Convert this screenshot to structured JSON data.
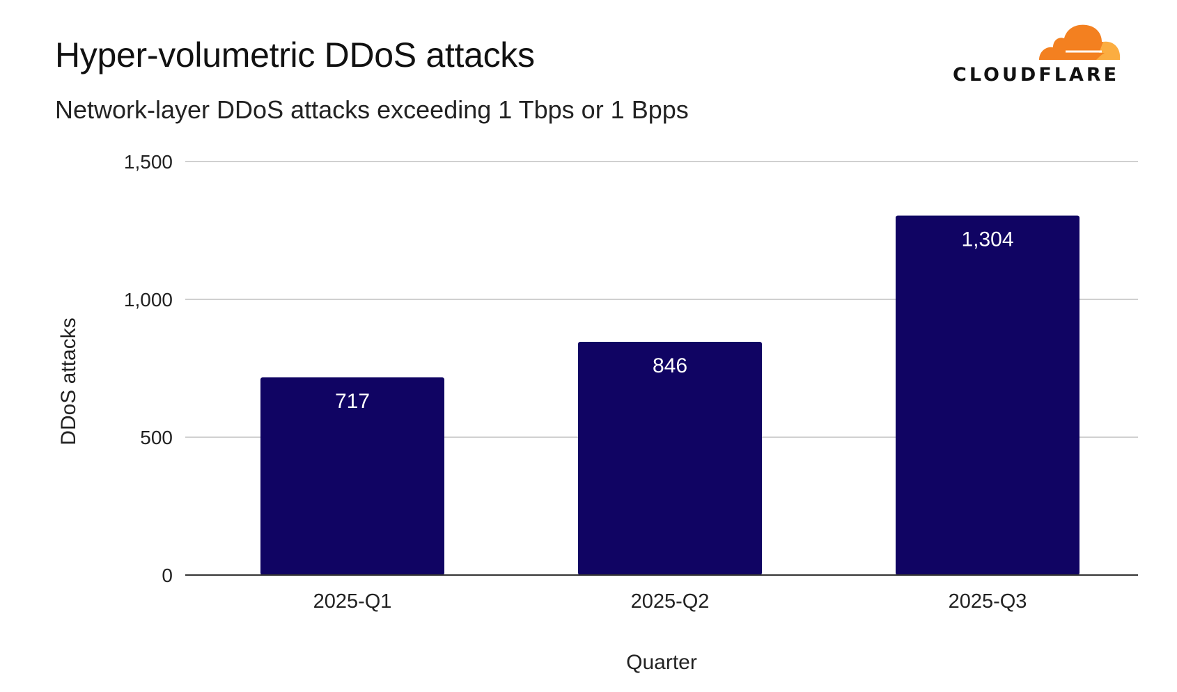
{
  "header": {
    "title": "Hyper-volumetric DDoS attacks",
    "subtitle": "Network-layer DDoS attacks exceeding 1 Tbps or 1 Bpps",
    "logo_text": "CLOUDFLARE"
  },
  "colors": {
    "bar": "#100463",
    "logo_orange": "#F38020",
    "logo_light_orange": "#FBAD41",
    "gridline": "#d0d0d0"
  },
  "chart_data": {
    "type": "bar",
    "title": "Hyper-volumetric DDoS attacks",
    "subtitle": "Network-layer DDoS attacks exceeding 1 Tbps or 1 Bpps",
    "xlabel": "Quarter",
    "ylabel": "DDoS attacks",
    "categories": [
      "2025-Q1",
      "2025-Q2",
      "2025-Q3"
    ],
    "values": [
      717,
      846,
      1304
    ],
    "data_labels": [
      "717",
      "846",
      "1,304"
    ],
    "ylim": [
      0,
      1500
    ],
    "yticks": [
      0,
      500,
      1000,
      1500
    ],
    "ytick_labels": [
      "0",
      "500",
      "1,000",
      "1,500"
    ],
    "grid": true,
    "legend": "none"
  }
}
